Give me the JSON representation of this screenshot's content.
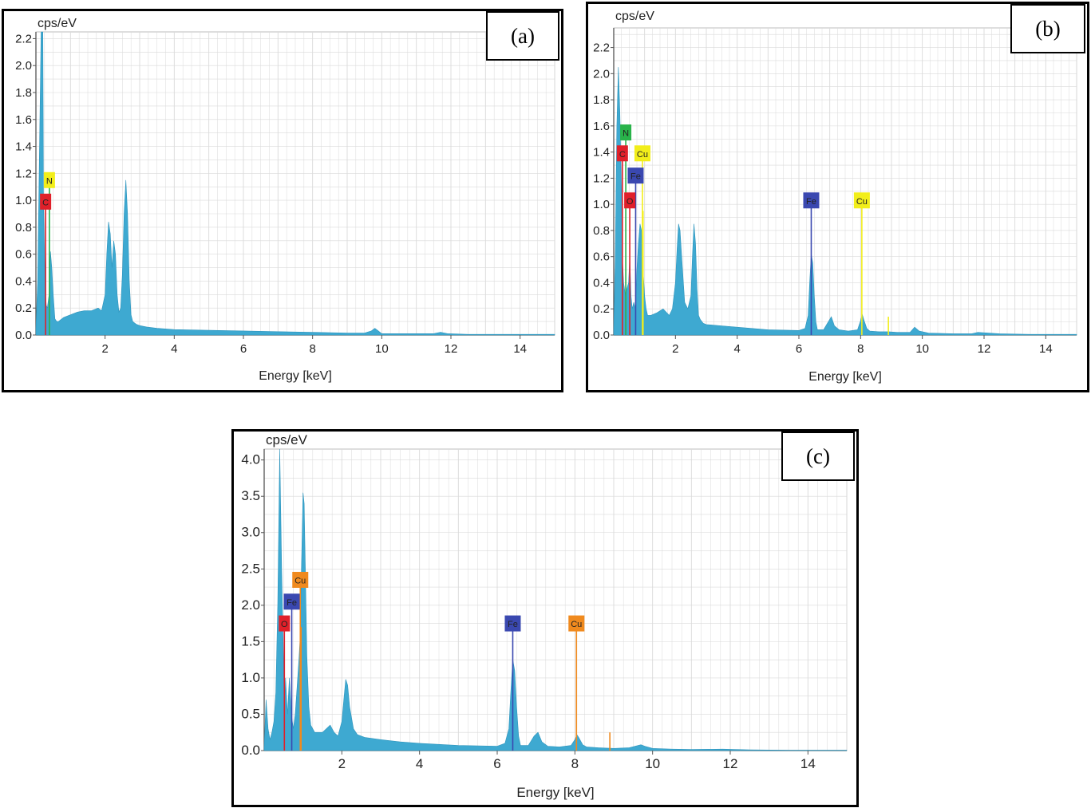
{
  "colors": {
    "spectrum": "#3ea9d1",
    "grid": "#dadada",
    "axis": "#555555",
    "C": "#e0202a",
    "N": "#29b34a",
    "N_label_yellow": "#f2ee1a",
    "O": "#e0202a",
    "Fe": "#3a48b0",
    "Cu_b": "#f2ee1a",
    "Cu_c": "#f08a1e"
  },
  "chart_data": [
    {
      "type": "area",
      "panel_label": "(a)",
      "ylabel": "cps/eV",
      "xlabel": "Energy [keV]",
      "xlim": [
        0,
        15
      ],
      "ylim": [
        0,
        2.25
      ],
      "xticks": [
        "2",
        "4",
        "6",
        "8",
        "10",
        "12",
        "14"
      ],
      "yticks": [
        "0.0",
        "0.2",
        "0.4",
        "0.6",
        "0.8",
        "1.0",
        "1.2",
        "1.4",
        "1.6",
        "1.8",
        "2.0",
        "2.2"
      ],
      "grid": true,
      "series": [
        {
          "x": [
            0,
            0.05,
            0.1,
            0.15,
            0.2,
            0.22,
            0.25,
            0.28,
            0.3,
            0.33,
            0.38,
            0.42,
            0.46,
            0.5,
            0.55,
            0.6,
            0.65,
            0.8,
            1.0,
            1.2,
            1.4,
            1.6,
            1.8,
            1.9,
            2.0,
            2.05,
            2.1,
            2.15,
            2.2,
            2.25,
            2.3,
            2.35,
            2.4,
            2.45,
            2.5,
            2.55,
            2.6,
            2.65,
            2.7,
            2.75,
            2.8,
            2.85,
            2.9,
            3.0,
            3.2,
            3.5,
            4.0,
            5.0,
            6.0,
            7.0,
            8.0,
            9.0,
            9.5,
            9.7,
            9.8,
            9.9,
            10.0,
            10.5,
            11.0,
            11.5,
            11.7,
            11.9,
            12.5,
            13.0,
            14.0,
            15.0
          ],
          "y": [
            0.05,
            0.4,
            1.3,
            2.25,
            2.25,
            1.0,
            0.6,
            0.3,
            0.22,
            0.2,
            0.3,
            0.62,
            0.5,
            0.3,
            0.12,
            0.1,
            0.1,
            0.13,
            0.15,
            0.17,
            0.18,
            0.18,
            0.2,
            0.18,
            0.3,
            0.6,
            0.84,
            0.75,
            0.5,
            0.7,
            0.6,
            0.3,
            0.17,
            0.2,
            0.45,
            0.9,
            1.15,
            0.9,
            0.4,
            0.15,
            0.1,
            0.09,
            0.08,
            0.07,
            0.06,
            0.05,
            0.04,
            0.035,
            0.03,
            0.025,
            0.02,
            0.015,
            0.015,
            0.03,
            0.05,
            0.03,
            0.01,
            0.01,
            0.01,
            0.01,
            0.02,
            0.01,
            0.005,
            0.005,
            0.005,
            0.005
          ]
        }
      ],
      "element_markers": [
        {
          "element": "N",
          "energy": 0.39,
          "line_height": 1.1,
          "label_y": 1.15,
          "line_color": "#29b34a",
          "label_color": "#f2ee1a"
        },
        {
          "element": "C",
          "energy": 0.28,
          "line_height": 0.95,
          "label_y": 0.99,
          "line_color": "#e0202a",
          "label_color": "#e0202a"
        }
      ]
    },
    {
      "type": "area",
      "panel_label": "(b)",
      "ylabel": "cps/eV",
      "xlabel": "Energy [keV]",
      "xlim": [
        0,
        15
      ],
      "ylim": [
        0,
        2.35
      ],
      "xticks": [
        "2",
        "4",
        "6",
        "8",
        "10",
        "12",
        "14"
      ],
      "yticks": [
        "0.0",
        "0.2",
        "0.4",
        "0.6",
        "0.8",
        "1.0",
        "1.2",
        "1.4",
        "1.6",
        "1.8",
        "2.0",
        "2.2"
      ],
      "grid": true,
      "series": [
        {
          "x": [
            0,
            0.05,
            0.1,
            0.15,
            0.2,
            0.25,
            0.28,
            0.32,
            0.38,
            0.42,
            0.48,
            0.52,
            0.56,
            0.6,
            0.65,
            0.7,
            0.75,
            0.8,
            0.85,
            0.9,
            0.95,
            1.0,
            1.05,
            1.1,
            1.2,
            1.4,
            1.6,
            1.8,
            1.9,
            2.0,
            2.05,
            2.1,
            2.15,
            2.2,
            2.3,
            2.4,
            2.5,
            2.55,
            2.6,
            2.65,
            2.7,
            2.75,
            2.8,
            2.9,
            3.0,
            3.5,
            4.0,
            5.0,
            6.0,
            6.2,
            6.3,
            6.35,
            6.4,
            6.45,
            6.5,
            6.55,
            6.6,
            6.8,
            6.95,
            7.05,
            7.15,
            7.3,
            7.6,
            7.9,
            8.0,
            8.05,
            8.1,
            8.2,
            8.3,
            8.6,
            8.9,
            9.2,
            9.6,
            9.75,
            9.9,
            10.2,
            11.0,
            11.6,
            11.8,
            12.5,
            13.5,
            15.0
          ],
          "y": [
            0.05,
            0.6,
            1.6,
            2.05,
            1.7,
            1.1,
            0.6,
            0.4,
            0.3,
            0.35,
            0.4,
            0.6,
            0.3,
            0.2,
            0.25,
            0.2,
            0.5,
            0.7,
            0.85,
            0.8,
            0.5,
            0.3,
            0.2,
            0.15,
            0.15,
            0.17,
            0.2,
            0.15,
            0.2,
            0.4,
            0.65,
            0.85,
            0.8,
            0.6,
            0.25,
            0.2,
            0.3,
            0.6,
            0.85,
            0.7,
            0.35,
            0.15,
            0.12,
            0.09,
            0.08,
            0.07,
            0.06,
            0.04,
            0.035,
            0.05,
            0.15,
            0.4,
            0.62,
            0.55,
            0.3,
            0.1,
            0.04,
            0.04,
            0.1,
            0.14,
            0.07,
            0.04,
            0.03,
            0.04,
            0.11,
            0.16,
            0.12,
            0.05,
            0.03,
            0.025,
            0.025,
            0.02,
            0.02,
            0.06,
            0.03,
            0.015,
            0.01,
            0.01,
            0.02,
            0.01,
            0.005,
            0.005
          ]
        }
      ],
      "element_markers": [
        {
          "element": "N",
          "energy": 0.39,
          "line_height": 1.5,
          "label_y": 1.55,
          "line_color": "#29b34a",
          "label_color": "#29b34a"
        },
        {
          "element": "C",
          "energy": 0.28,
          "line_height": 1.35,
          "label_y": 1.39,
          "line_color": "#e0202a",
          "label_color": "#e0202a"
        },
        {
          "element": "Cu",
          "energy": 0.93,
          "line_height": 1.35,
          "label_y": 1.39,
          "line_color": "#f2ee1a",
          "label_color": "#f2ee1a"
        },
        {
          "element": "Fe",
          "energy": 0.71,
          "line_height": 1.18,
          "label_y": 1.22,
          "line_color": "#3a48b0",
          "label_color": "#3a48b0"
        },
        {
          "element": "O",
          "energy": 0.52,
          "line_height": 0.99,
          "label_y": 1.03,
          "line_color": "#e0202a",
          "label_color": "#e0202a"
        },
        {
          "element": "Fe",
          "energy": 6.4,
          "line_height": 0.99,
          "label_y": 1.03,
          "line_color": "#3a48b0",
          "label_color": "#3a48b0"
        },
        {
          "element": "Cu",
          "energy": 8.04,
          "line_height": 0.99,
          "label_y": 1.03,
          "line_color": "#f2ee1a",
          "label_color": "#f2ee1a"
        }
      ],
      "extra_lines": [
        {
          "energy": 8.9,
          "height": 0.14,
          "color": "#f2ee1a"
        },
        {
          "energy": 0.95,
          "height": 0.95,
          "color": "#f2ee1a"
        }
      ]
    },
    {
      "type": "area",
      "panel_label": "(c)",
      "ylabel": "cps/eV",
      "xlabel": "Energy [keV]",
      "xlim": [
        0,
        15
      ],
      "ylim": [
        0,
        4.15
      ],
      "xticks": [
        "2",
        "4",
        "6",
        "8",
        "10",
        "12",
        "14"
      ],
      "yticks": [
        "0.0",
        "0.5",
        "1.0",
        "1.5",
        "2.0",
        "2.5",
        "3.0",
        "3.5",
        "4.0"
      ],
      "grid": true,
      "series": [
        {
          "x": [
            0,
            0.05,
            0.1,
            0.15,
            0.2,
            0.25,
            0.3,
            0.35,
            0.4,
            0.45,
            0.5,
            0.52,
            0.55,
            0.6,
            0.65,
            0.7,
            0.75,
            0.8,
            0.85,
            0.9,
            0.93,
            0.96,
            1.0,
            1.03,
            1.06,
            1.1,
            1.15,
            1.2,
            1.3,
            1.5,
            1.7,
            1.8,
            1.9,
            2.0,
            2.05,
            2.1,
            2.15,
            2.2,
            2.3,
            2.4,
            2.6,
            3.0,
            3.5,
            4.0,
            5.0,
            6.0,
            6.2,
            6.3,
            6.35,
            6.4,
            6.45,
            6.5,
            6.55,
            6.6,
            6.8,
            6.95,
            7.05,
            7.15,
            7.3,
            7.6,
            7.9,
            8.0,
            8.05,
            8.1,
            8.2,
            8.3,
            8.6,
            9.0,
            9.4,
            9.7,
            9.8,
            10.0,
            10.5,
            11.0,
            11.8,
            12.5,
            13.5,
            15.0
          ],
          "y": [
            0.05,
            0.7,
            0.3,
            0.15,
            0.25,
            0.4,
            0.8,
            2.0,
            4.15,
            2.5,
            1.2,
            0.5,
            1.0,
            0.5,
            1.0,
            0.5,
            0.3,
            0.5,
            0.9,
            1.3,
            1.6,
            2.5,
            3.55,
            3.4,
            2.5,
            1.3,
            0.6,
            0.35,
            0.25,
            0.25,
            0.35,
            0.25,
            0.2,
            0.4,
            0.7,
            0.98,
            0.9,
            0.6,
            0.3,
            0.22,
            0.18,
            0.15,
            0.12,
            0.1,
            0.07,
            0.06,
            0.1,
            0.3,
            0.8,
            1.25,
            1.1,
            0.6,
            0.2,
            0.07,
            0.07,
            0.2,
            0.25,
            0.12,
            0.06,
            0.05,
            0.07,
            0.15,
            0.22,
            0.18,
            0.08,
            0.05,
            0.04,
            0.03,
            0.04,
            0.08,
            0.06,
            0.03,
            0.02,
            0.015,
            0.02,
            0.01,
            0.005,
            0.005
          ]
        }
      ],
      "element_markers": [
        {
          "element": "Cu",
          "energy": 0.93,
          "line_height": 2.25,
          "label_y": 2.35,
          "line_color": "#f08a1e",
          "label_color": "#f08a1e"
        },
        {
          "element": "Fe",
          "energy": 0.71,
          "line_height": 1.95,
          "label_y": 2.05,
          "line_color": "#3a48b0",
          "label_color": "#3a48b0"
        },
        {
          "element": "O",
          "energy": 0.52,
          "line_height": 1.65,
          "label_y": 1.75,
          "line_color": "#e0202a",
          "label_color": "#e0202a"
        },
        {
          "element": "Fe",
          "energy": 6.4,
          "line_height": 1.65,
          "label_y": 1.75,
          "line_color": "#3a48b0",
          "label_color": "#3a48b0"
        },
        {
          "element": "Cu",
          "energy": 8.04,
          "line_height": 1.65,
          "label_y": 1.75,
          "line_color": "#f08a1e",
          "label_color": "#f08a1e"
        }
      ],
      "extra_lines": [
        {
          "energy": 8.9,
          "height": 0.25,
          "color": "#f08a1e"
        },
        {
          "energy": 0.95,
          "height": 1.7,
          "color": "#f08a1e"
        }
      ]
    }
  ]
}
